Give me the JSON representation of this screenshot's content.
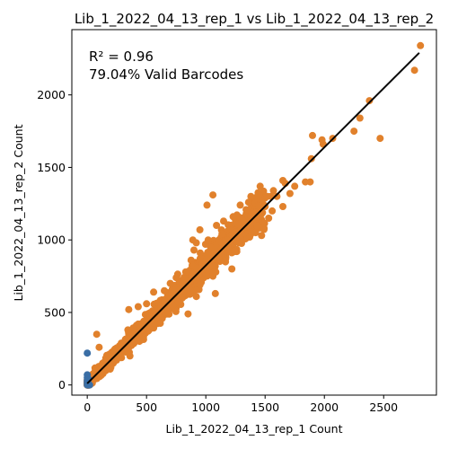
{
  "chart_data": {
    "type": "scatter",
    "title": "Lib_1_2022_04_13_rep_1 vs Lib_1_2022_04_13_rep_2",
    "xlabel": "Lib_1_2022_04_13_rep_1 Count",
    "ylabel": "Lib_1_2022_04_13_rep_2 Count",
    "xlim": [
      -130,
      2945
    ],
    "ylim": [
      -70,
      2450
    ],
    "xticks": [
      0,
      500,
      1000,
      1500,
      2000,
      2500
    ],
    "yticks": [
      0,
      500,
      1000,
      1500,
      2000
    ],
    "grid": false,
    "annotations": [
      "R² = 0.96",
      "79.04% Valid Barcodes"
    ],
    "colors": {
      "valid": "#e1812c",
      "invalid": "#3a6ea5",
      "fit": "#000000"
    },
    "fit_line": {
      "x": [
        0,
        2800
      ],
      "y": [
        10,
        2290
      ]
    },
    "series": [
      {
        "color": "#e1812c",
        "x": [
          2810,
          2760,
          2380,
          2300,
          2250,
          2470,
          1990,
          2070,
          1900,
          1890,
          1980,
          1880,
          1840,
          1750,
          1670,
          1710,
          1650,
          1570,
          1600,
          1520,
          1500,
          1450,
          1380,
          1650,
          1560,
          1470,
          1530,
          1420,
          1230,
          1270,
          1090,
          1010,
          1060,
          1300,
          1140,
          1210,
          1180,
          1080,
          950,
          1020,
          1040,
          900,
          920,
          890,
          1110,
          1220,
          1370,
          1470,
          1550,
          1290,
          1150,
          1000,
          830,
          750,
          700,
          720,
          920,
          950,
          1060,
          870,
          650,
          560,
          500,
          430,
          350,
          480,
          680,
          1080,
          1020,
          850,
          430,
          140,
          80,
          360,
          100
        ],
        "y": [
          2340,
          2170,
          1960,
          1840,
          1750,
          1700,
          1660,
          1700,
          1720,
          1560,
          1690,
          1400,
          1400,
          1370,
          1390,
          1320,
          1410,
          1340,
          1300,
          1300,
          1230,
          1310,
          1300,
          1230,
          1200,
          1180,
          1150,
          1050,
          1160,
          1110,
          1100,
          1240,
          1310,
          1080,
          1040,
          1030,
          1000,
          960,
          1070,
          1000,
          950,
          930,
          980,
          1000,
          870,
          800,
          1020,
          1030,
          1300,
          1240,
          1130,
          830,
          780,
          740,
          700,
          550,
          610,
          690,
          750,
          650,
          650,
          640,
          560,
          540,
          520,
          420,
          500,
          630,
          790,
          490,
          420,
          120,
          350,
          200,
          260
        ]
      }
    ],
    "invalid_points": {
      "color": "#3a6ea5",
      "x": [
        0,
        0,
        0,
        0,
        0,
        0,
        10,
        20,
        0,
        10
      ],
      "y": [
        220,
        70,
        50,
        30,
        20,
        10,
        0,
        0,
        0,
        40
      ]
    },
    "dense_band": {
      "color": "#e1812c",
      "count": 1600,
      "x_max": 1500,
      "slope": 0.82,
      "intercept": 10
    }
  }
}
